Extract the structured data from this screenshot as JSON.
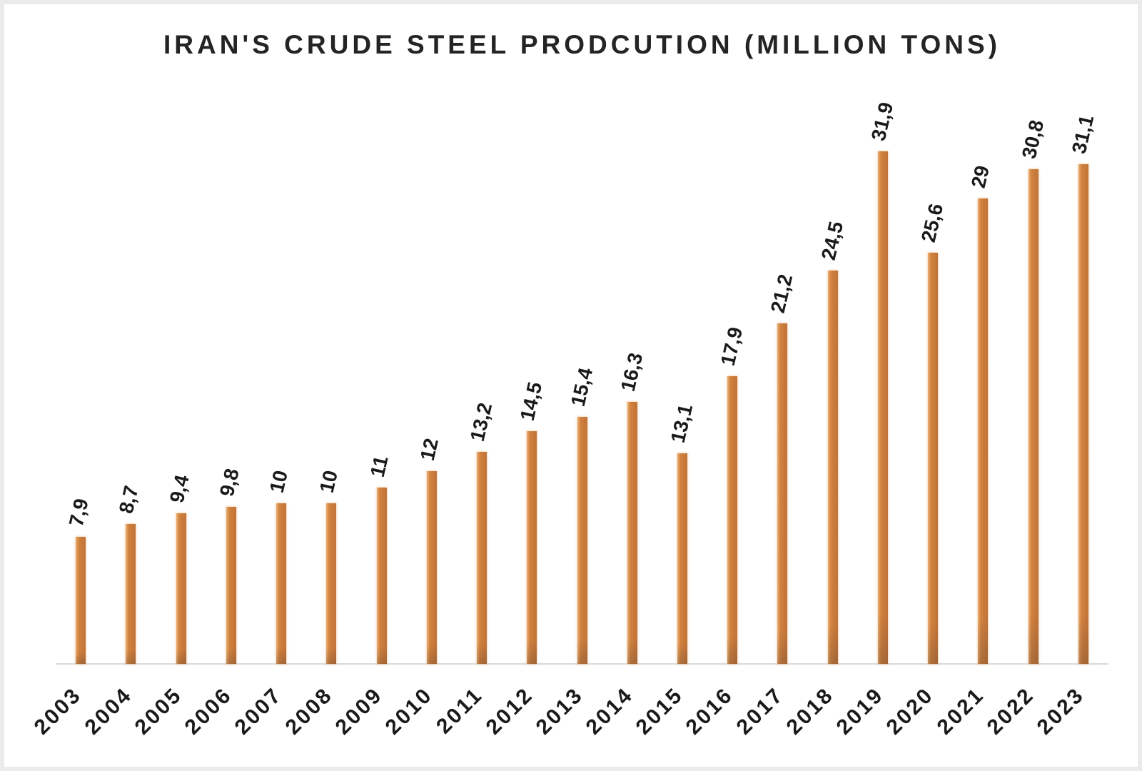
{
  "title": "IRAN'S CRUDE STEEL PRODCUTION (MILLION TONS)",
  "chart_data": {
    "type": "bar",
    "title": "IRAN'S CRUDE STEEL PRODCUTION (MILLION TONS)",
    "categories": [
      "2003",
      "2004",
      "2005",
      "2006",
      "2007",
      "2008",
      "2009",
      "2010",
      "2011",
      "2012",
      "2013",
      "2014",
      "2015",
      "2016",
      "2017",
      "2018",
      "2019",
      "2020",
      "2021",
      "2022",
      "2023"
    ],
    "values": [
      7.9,
      8.7,
      9.4,
      9.8,
      10,
      10,
      11,
      12,
      13.2,
      14.5,
      15.4,
      16.3,
      13.1,
      17.9,
      21.2,
      24.5,
      31.9,
      25.6,
      29,
      30.8,
      31.1
    ],
    "value_labels": [
      "7,9",
      "8,7",
      "9,4",
      "9,8",
      "10",
      "10",
      "11",
      "12",
      "13,2",
      "14,5",
      "15,4",
      "16,3",
      "13,1",
      "17,9",
      "21,2",
      "24,5",
      "31,9",
      "25,6",
      "29",
      "30,8",
      "31,1"
    ],
    "xlabel": "",
    "ylabel": "",
    "ylim": [
      0,
      35
    ],
    "grid": false,
    "legend": false,
    "value_label_rotation_deg": -77,
    "category_label_rotation_deg": -45,
    "bar_color": "#c87a3b",
    "axis_line_color": "#d9d9d9",
    "text_color": "#1a1a1a",
    "frame_color": "#ebebeb"
  }
}
